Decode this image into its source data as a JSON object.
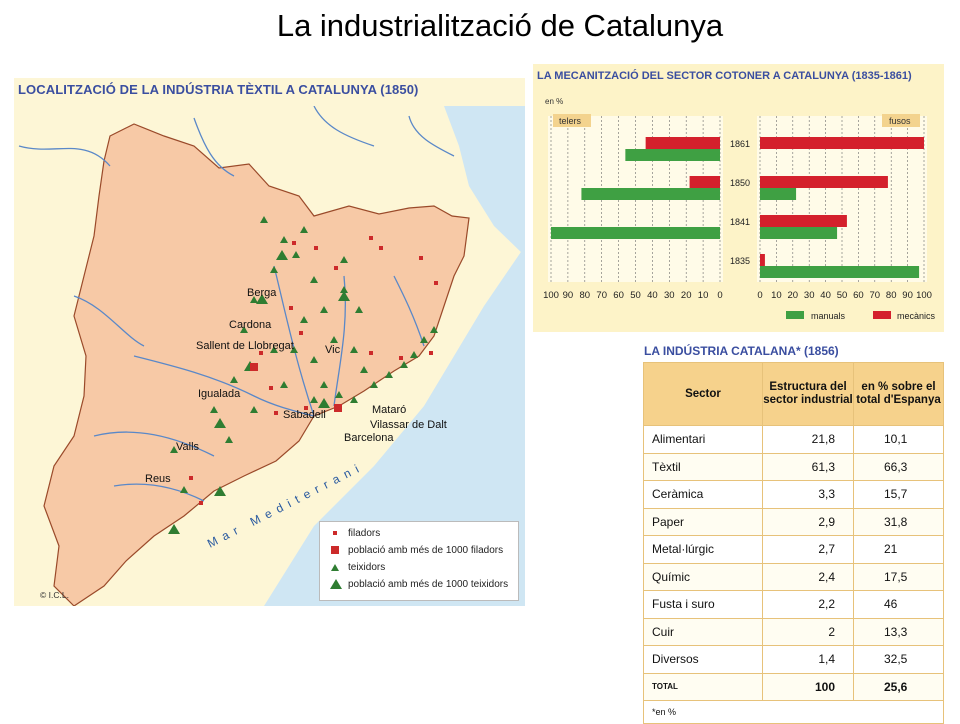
{
  "title": "La industrialització de Catalunya",
  "map": {
    "heading": "LOCALITZACIÓ DE LA INDÚSTRIA TÈXTIL A CATALUNYA (1850)",
    "sea_label": "Mar  Mediterrani",
    "copyright": "© I.C.L.",
    "towns": [
      "Berga",
      "Cardona",
      "Sallent de Llobregat",
      "Vic",
      "Igualada",
      "Sabadell",
      "Mataró",
      "Vilassar de Dalt",
      "Barcelona",
      "Valls",
      "Reus"
    ],
    "legend": [
      {
        "symbol": "small-square",
        "label": "filadors"
      },
      {
        "symbol": "large-square",
        "label": "població amb més de 1000 filadors"
      },
      {
        "symbol": "small-triangle",
        "label": "teixidors"
      },
      {
        "symbol": "large-triangle",
        "label": "població amb més de 1000 teixidors"
      }
    ],
    "colors": {
      "land": "#f7c9a6",
      "sea": "#cfe6f3",
      "outside": "#fdf6d6",
      "river": "#5a88c8",
      "triangle": "#2f7d32",
      "square": "#cc2a2a"
    }
  },
  "cotton": {
    "heading": "LA MECANITZACIÓ DEL SECTOR COTONER A CATALUNYA (1835-1861)",
    "unit": "en %",
    "left_label": "telers",
    "right_label": "fusos",
    "left_ticks": [
      "100",
      "90",
      "80",
      "70",
      "60",
      "50",
      "40",
      "30",
      "20",
      "10",
      "0"
    ],
    "right_ticks": [
      "0",
      "10",
      "20",
      "30",
      "40",
      "50",
      "60",
      "70",
      "80",
      "90",
      "100"
    ],
    "legend_manual": "manuals",
    "legend_mech": "mecànics"
  },
  "chart_data": {
    "type": "bar",
    "title": "LA MECANITZACIÓ DEL SECTOR COTONER A CATALUNYA (1835-1861)",
    "ylabel": "en %",
    "categories": [
      "1861",
      "1850",
      "1841",
      "1835"
    ],
    "xlim": [
      0,
      100
    ],
    "panels": [
      {
        "name": "telers",
        "series": [
          {
            "name": "mecànics",
            "values": [
              44,
              18,
              0,
              0
            ]
          },
          {
            "name": "manuals",
            "values": [
              56,
              82,
              100,
              0
            ]
          }
        ]
      },
      {
        "name": "fusos",
        "series": [
          {
            "name": "mecànics",
            "values": [
              100,
              78,
              53,
              3
            ]
          },
          {
            "name": "manuals",
            "values": [
              0,
              22,
              47,
              97
            ]
          }
        ]
      }
    ],
    "colors": {
      "mecànics": "#d4202c",
      "manuals": "#3fa043"
    },
    "grid": true
  },
  "industry": {
    "heading": "LA INDÚSTRIA CATALANA* (1856)",
    "headers": [
      "Sector",
      "Estructura del sector industrial",
      "en % sobre el total d'Espanya"
    ],
    "rows": [
      {
        "sector": "Alimentari",
        "structure": "21,8",
        "spain": "10,1"
      },
      {
        "sector": "Tèxtil",
        "structure": "61,3",
        "spain": "66,3"
      },
      {
        "sector": "Ceràmica",
        "structure": "3,3",
        "spain": "15,7"
      },
      {
        "sector": "Paper",
        "structure": "2,9",
        "spain": "31,8"
      },
      {
        "sector": "Metal·lúrgic",
        "structure": "2,7",
        "spain": "21"
      },
      {
        "sector": "Químic",
        "structure": "2,4",
        "spain": "17,5"
      },
      {
        "sector": "Fusta i suro",
        "structure": "2,2",
        "spain": "46"
      },
      {
        "sector": "Cuir",
        "structure": "2",
        "spain": "13,3"
      },
      {
        "sector": "Diversos",
        "structure": "1,4",
        "spain": "32,5"
      }
    ],
    "total": {
      "sector": "TOTAL",
      "structure": "100",
      "spain": "25,6"
    },
    "note": "*en %"
  }
}
